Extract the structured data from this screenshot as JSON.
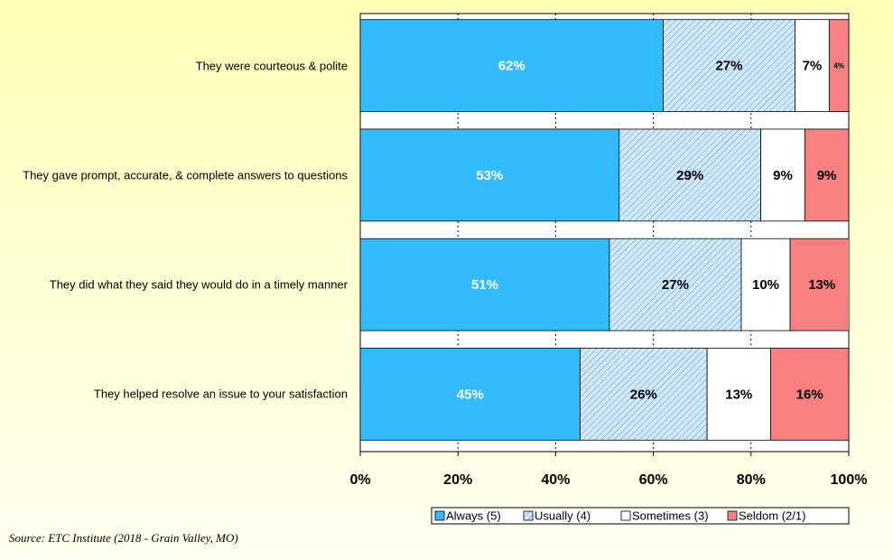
{
  "chart_data": {
    "type": "stacked-bar-horizontal",
    "categories": [
      "They were courteous & polite",
      "They gave prompt, accurate, & complete answers to questions",
      "They did what they said they would do in a timely manner",
      "They helped resolve an issue to your satisfaction"
    ],
    "series": [
      {
        "name": "Always (5)",
        "color": "#33bbff",
        "label_color": "#ffffff",
        "values": [
          62,
          53,
          51,
          45
        ],
        "value_labels": [
          "62%",
          "53%",
          "51%",
          "45%"
        ]
      },
      {
        "name": "Usually (4)",
        "color": "#cfeaff",
        "hatch": true,
        "label_color": "#000000",
        "values": [
          27,
          29,
          27,
          26
        ],
        "value_labels": [
          "27%",
          "29%",
          "27%",
          "26%"
        ]
      },
      {
        "name": "Sometimes (3)",
        "color": "#ffffff",
        "label_color": "#000000",
        "values": [
          7,
          9,
          10,
          13
        ],
        "value_labels": [
          "7%",
          "9%",
          "10%",
          "13%"
        ]
      },
      {
        "name": "Seldom (2/1)",
        "color": "#f88080",
        "label_color": "#000000",
        "values": [
          4,
          9,
          13,
          16
        ],
        "value_labels": [
          "4%",
          "9%",
          "13%",
          "16%"
        ]
      }
    ],
    "xlim": [
      0,
      100
    ],
    "xticks": [
      {
        "value": 0,
        "label": "0%"
      },
      {
        "value": 20,
        "label": "20%"
      },
      {
        "value": 40,
        "label": "40%"
      },
      {
        "value": 60,
        "label": "60%"
      },
      {
        "value": 80,
        "label": "80%"
      },
      {
        "value": 100,
        "label": "100%"
      }
    ],
    "grid": true,
    "legend": "bottom",
    "source": "Source:  ETC Institute (2018 - Grain Valley, MO)"
  }
}
